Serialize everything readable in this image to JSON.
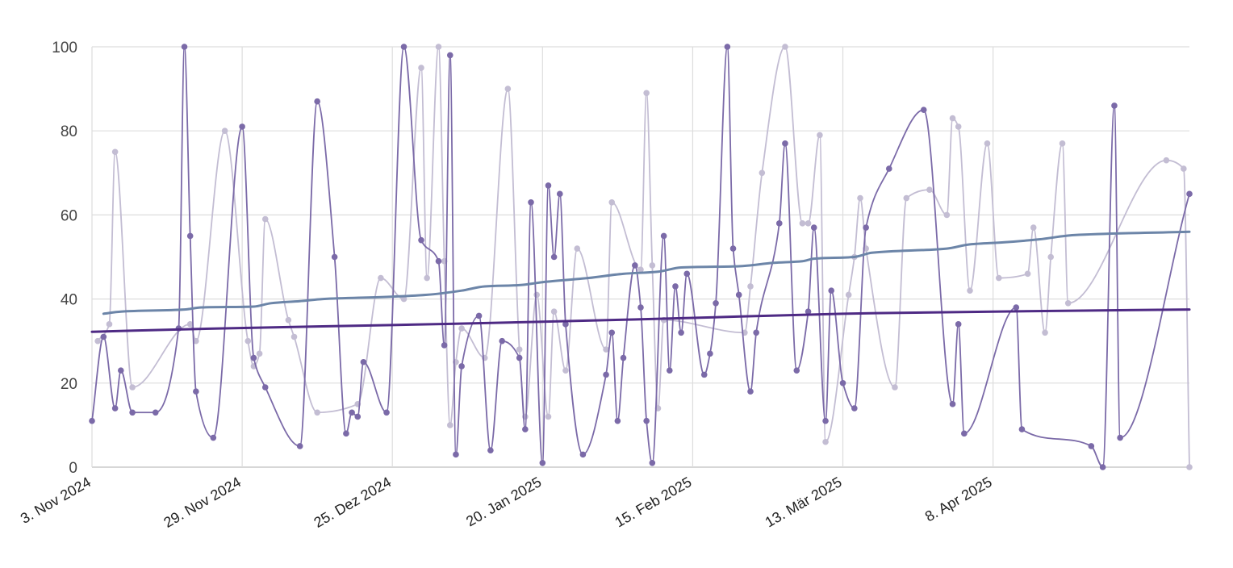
{
  "chart_data": {
    "type": "line",
    "title": "",
    "xlabel": "",
    "ylabel": "",
    "x_range": [
      "2024-11-03",
      "2025-05-12"
    ],
    "ylim": [
      0,
      100
    ],
    "y_ticks": [
      0,
      20,
      40,
      60,
      80,
      100
    ],
    "x_ticks": [
      {
        "date": "2024-11-03",
        "label": "3. Nov 2024"
      },
      {
        "date": "2024-11-29",
        "label": "29. Nov 2024"
      },
      {
        "date": "2024-12-25",
        "label": "25. Dez 2024"
      },
      {
        "date": "2025-01-20",
        "label": "20. Jan 2025"
      },
      {
        "date": "2025-02-15",
        "label": "15. Feb 2025"
      },
      {
        "date": "2025-03-13",
        "label": "13. Mär 2025"
      },
      {
        "date": "2025-04-08",
        "label": "8. Apr 2025"
      }
    ],
    "grid": true,
    "legend": "none",
    "series": [
      {
        "color": "#7b6aa8",
        "markers": true,
        "points": [
          [
            "2024-11-03",
            11
          ],
          [
            "2024-11-05",
            31
          ],
          [
            "2024-11-07",
            14
          ],
          [
            "2024-11-08",
            23
          ],
          [
            "2024-11-10",
            13
          ],
          [
            "2024-11-14",
            13
          ],
          [
            "2024-11-18",
            33
          ],
          [
            "2024-11-19",
            100
          ],
          [
            "2024-11-20",
            55
          ],
          [
            "2024-11-21",
            18
          ],
          [
            "2024-11-24",
            7
          ],
          [
            "2024-11-29",
            81
          ],
          [
            "2024-12-01",
            26
          ],
          [
            "2024-12-03",
            19
          ],
          [
            "2024-12-09",
            5
          ],
          [
            "2024-12-12",
            87
          ],
          [
            "2024-12-15",
            50
          ],
          [
            "2024-12-17",
            8
          ],
          [
            "2024-12-18",
            13
          ],
          [
            "2024-12-19",
            12
          ],
          [
            "2024-12-20",
            25
          ],
          [
            "2024-12-24",
            13
          ],
          [
            "2024-12-27",
            100
          ],
          [
            "2024-12-30",
            54
          ],
          [
            "2025-01-02",
            49
          ],
          [
            "2025-01-03",
            29
          ],
          [
            "2025-01-04",
            98
          ],
          [
            "2025-01-05",
            3
          ],
          [
            "2025-01-06",
            24
          ],
          [
            "2025-01-09",
            36
          ],
          [
            "2025-01-11",
            4
          ],
          [
            "2025-01-13",
            30
          ],
          [
            "2025-01-16",
            26
          ],
          [
            "2025-01-17",
            9
          ],
          [
            "2025-01-18",
            63
          ],
          [
            "2025-01-20",
            1
          ],
          [
            "2025-01-21",
            67
          ],
          [
            "2025-01-22",
            50
          ],
          [
            "2025-01-23",
            65
          ],
          [
            "2025-01-24",
            34
          ],
          [
            "2025-01-27",
            3
          ],
          [
            "2025-01-31",
            22
          ],
          [
            "2025-02-01",
            32
          ],
          [
            "2025-02-02",
            11
          ],
          [
            "2025-02-03",
            26
          ],
          [
            "2025-02-05",
            48
          ],
          [
            "2025-02-06",
            38
          ],
          [
            "2025-02-07",
            11
          ],
          [
            "2025-02-08",
            1
          ],
          [
            "2025-02-10",
            55
          ],
          [
            "2025-02-11",
            23
          ],
          [
            "2025-02-12",
            43
          ],
          [
            "2025-02-13",
            32
          ],
          [
            "2025-02-14",
            46
          ],
          [
            "2025-02-17",
            22
          ],
          [
            "2025-02-18",
            27
          ],
          [
            "2025-02-19",
            39
          ],
          [
            "2025-02-21",
            100
          ],
          [
            "2025-02-22",
            52
          ],
          [
            "2025-02-23",
            41
          ],
          [
            "2025-02-25",
            18
          ],
          [
            "2025-02-26",
            32
          ],
          [
            "2025-03-02",
            58
          ],
          [
            "2025-03-03",
            77
          ],
          [
            "2025-03-05",
            23
          ],
          [
            "2025-03-07",
            37
          ],
          [
            "2025-03-08",
            57
          ],
          [
            "2025-03-10",
            11
          ],
          [
            "2025-03-11",
            42
          ],
          [
            "2025-03-13",
            20
          ],
          [
            "2025-03-15",
            14
          ],
          [
            "2025-03-17",
            57
          ],
          [
            "2025-03-21",
            71
          ],
          [
            "2025-03-27",
            85
          ],
          [
            "2025-04-01",
            15
          ],
          [
            "2025-04-02",
            34
          ],
          [
            "2025-04-03",
            8
          ],
          [
            "2025-04-12",
            38
          ],
          [
            "2025-04-13",
            9
          ],
          [
            "2025-04-25",
            5
          ],
          [
            "2025-04-27",
            0
          ],
          [
            "2025-04-29",
            86
          ],
          [
            "2025-04-30",
            7
          ],
          [
            "2025-05-12",
            65
          ]
        ]
      },
      {
        "color": "#c3bdd3",
        "markers": true,
        "points": [
          [
            "2024-11-04",
            30
          ],
          [
            "2024-11-06",
            34
          ],
          [
            "2024-11-07",
            75
          ],
          [
            "2024-11-10",
            19
          ],
          [
            "2024-11-20",
            34
          ],
          [
            "2024-11-21",
            30
          ],
          [
            "2024-11-26",
            80
          ],
          [
            "2024-11-30",
            30
          ],
          [
            "2024-12-01",
            24
          ],
          [
            "2024-12-02",
            27
          ],
          [
            "2024-12-03",
            59
          ],
          [
            "2024-12-07",
            35
          ],
          [
            "2024-12-08",
            31
          ],
          [
            "2024-12-12",
            13
          ],
          [
            "2024-12-19",
            15
          ],
          [
            "2024-12-23",
            45
          ],
          [
            "2024-12-27",
            40
          ],
          [
            "2024-12-30",
            95
          ],
          [
            "2024-12-31",
            45
          ],
          [
            "2025-01-02",
            100
          ],
          [
            "2025-01-03",
            49
          ],
          [
            "2025-01-04",
            10
          ],
          [
            "2025-01-05",
            25
          ],
          [
            "2025-01-06",
            33
          ],
          [
            "2025-01-10",
            26
          ],
          [
            "2025-01-14",
            90
          ],
          [
            "2025-01-16",
            28
          ],
          [
            "2025-01-17",
            12
          ],
          [
            "2025-01-19",
            41
          ],
          [
            "2025-01-21",
            12
          ],
          [
            "2025-01-22",
            37
          ],
          [
            "2025-01-24",
            23
          ],
          [
            "2025-01-26",
            52
          ],
          [
            "2025-01-31",
            28
          ],
          [
            "2025-02-01",
            63
          ],
          [
            "2025-02-06",
            47
          ],
          [
            "2025-02-07",
            89
          ],
          [
            "2025-02-08",
            48
          ],
          [
            "2025-02-09",
            14
          ],
          [
            "2025-02-10",
            35
          ],
          [
            "2025-02-24",
            32
          ],
          [
            "2025-02-25",
            43
          ],
          [
            "2025-02-27",
            70
          ],
          [
            "2025-03-03",
            100
          ],
          [
            "2025-03-06",
            58
          ],
          [
            "2025-03-07",
            58
          ],
          [
            "2025-03-09",
            79
          ],
          [
            "2025-03-10",
            6
          ],
          [
            "2025-03-14",
            41
          ],
          [
            "2025-03-15",
            50
          ],
          [
            "2025-03-16",
            64
          ],
          [
            "2025-03-17",
            52
          ],
          [
            "2025-03-22",
            19
          ],
          [
            "2025-03-24",
            64
          ],
          [
            "2025-03-28",
            66
          ],
          [
            "2025-03-31",
            60
          ],
          [
            "2025-04-01",
            83
          ],
          [
            "2025-04-02",
            81
          ],
          [
            "2025-04-04",
            42
          ],
          [
            "2025-04-07",
            77
          ],
          [
            "2025-04-09",
            45
          ],
          [
            "2025-04-14",
            46
          ],
          [
            "2025-04-15",
            57
          ],
          [
            "2025-04-17",
            32
          ],
          [
            "2025-04-18",
            50
          ],
          [
            "2025-04-20",
            77
          ],
          [
            "2025-04-21",
            39
          ],
          [
            "2025-05-08",
            73
          ],
          [
            "2025-05-11",
            71
          ],
          [
            "2025-05-12",
            0
          ]
        ]
      },
      {
        "color": "#6c85a8",
        "markers": false,
        "points": [
          [
            "2024-11-05",
            36.5
          ],
          [
            "2024-11-08",
            37
          ],
          [
            "2024-11-19",
            37.5
          ],
          [
            "2024-11-22",
            38
          ],
          [
            "2024-12-01",
            38.2
          ],
          [
            "2024-12-04",
            39
          ],
          [
            "2024-12-09",
            39.5
          ],
          [
            "2024-12-13",
            40
          ],
          [
            "2024-12-24",
            40.5
          ],
          [
            "2024-12-31",
            41
          ],
          [
            "2025-01-06",
            42
          ],
          [
            "2025-01-10",
            43
          ],
          [
            "2025-01-16",
            43.3
          ],
          [
            "2025-01-20",
            44
          ],
          [
            "2025-01-28",
            45
          ],
          [
            "2025-02-03",
            46
          ],
          [
            "2025-02-09",
            46.5
          ],
          [
            "2025-02-13",
            47.5
          ],
          [
            "2025-02-23",
            47.8
          ],
          [
            "2025-03-01",
            48.6
          ],
          [
            "2025-03-06",
            49
          ],
          [
            "2025-03-08",
            49.6
          ],
          [
            "2025-03-15",
            50
          ],
          [
            "2025-03-18",
            51
          ],
          [
            "2025-03-31",
            52
          ],
          [
            "2025-04-04",
            53
          ],
          [
            "2025-04-10",
            53.5
          ],
          [
            "2025-04-16",
            54.2
          ],
          [
            "2025-04-22",
            55.2
          ],
          [
            "2025-05-12",
            56
          ]
        ]
      },
      {
        "color": "#4e2a84",
        "markers": false,
        "points": [
          [
            "2024-11-03",
            32.2
          ],
          [
            "2024-11-25",
            33
          ],
          [
            "2024-12-25",
            33.8
          ],
          [
            "2025-01-20",
            34.6
          ],
          [
            "2025-02-15",
            35.5
          ],
          [
            "2025-03-13",
            36.5
          ],
          [
            "2025-04-08",
            37
          ],
          [
            "2025-05-12",
            37.5
          ]
        ]
      }
    ]
  }
}
